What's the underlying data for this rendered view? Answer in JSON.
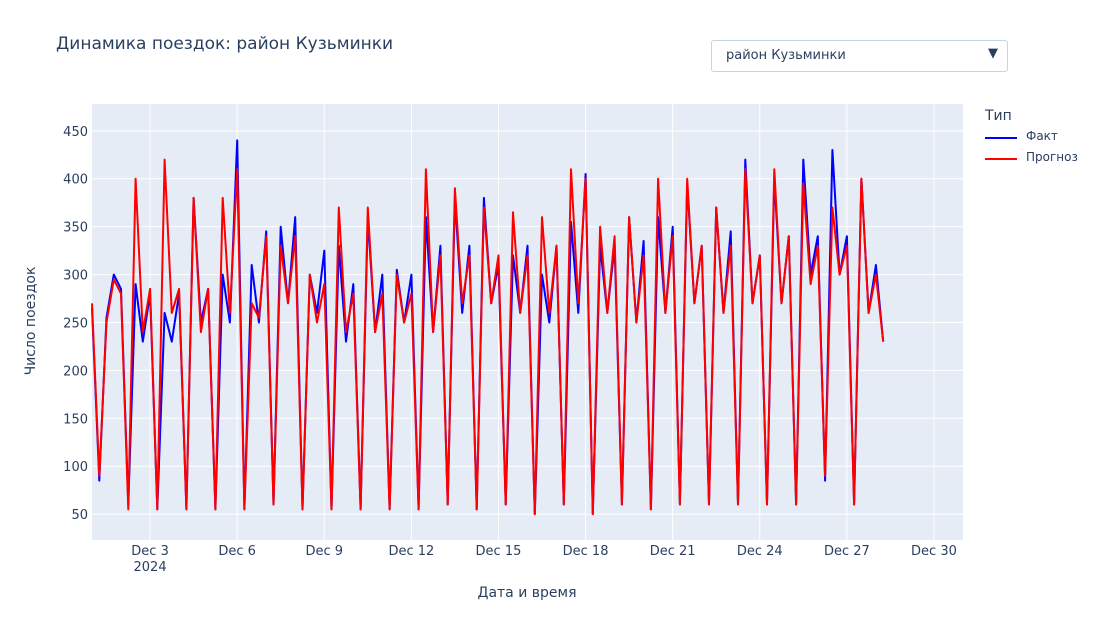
{
  "title": "Динамика поездок: район Кузьминки",
  "dropdown": {
    "selected": "район Кузьминки",
    "arrow_icon": "triangle-down-icon"
  },
  "legend": {
    "title": "Тип"
  },
  "chart_data": {
    "type": "line",
    "xlabel": "Дата и время",
    "ylabel": "Число поездок",
    "x_range": [
      "2024-12-01T00:00",
      "2024-12-31T00:00"
    ],
    "ylim": [
      23,
      478
    ],
    "y_ticks": [
      50,
      100,
      150,
      200,
      250,
      300,
      350,
      400,
      450
    ],
    "x_ticks": [
      {
        "date": "2024-12-03",
        "label": "Dec 3",
        "sublabel": "2024"
      },
      {
        "date": "2024-12-06",
        "label": "Dec 6"
      },
      {
        "date": "2024-12-09",
        "label": "Dec 9"
      },
      {
        "date": "2024-12-12",
        "label": "Dec 12"
      },
      {
        "date": "2024-12-15",
        "label": "Dec 15"
      },
      {
        "date": "2024-12-18",
        "label": "Dec 18"
      },
      {
        "date": "2024-12-21",
        "label": "Dec 21"
      },
      {
        "date": "2024-12-24",
        "label": "Dec 24"
      },
      {
        "date": "2024-12-27",
        "label": "Dec 27"
      },
      {
        "date": "2024-12-30",
        "label": "Dec 30"
      }
    ],
    "grid": true,
    "legend_position": "right",
    "sampling_hours": 6,
    "series": [
      {
        "name": "Факт",
        "color": "#0000ff",
        "values": [
          265,
          85,
          255,
          300,
          285,
          60,
          290,
          230,
          280,
          55,
          260,
          230,
          280,
          55,
          380,
          250,
          285,
          55,
          300,
          250,
          440,
          55,
          310,
          250,
          345,
          60,
          350,
          270,
          360,
          55,
          300,
          260,
          325,
          55,
          330,
          230,
          290,
          55,
          360,
          240,
          300,
          55,
          305,
          250,
          300,
          55,
          360,
          240,
          330,
          60,
          380,
          260,
          330,
          55,
          380,
          270,
          310,
          60,
          320,
          260,
          330,
          50,
          300,
          250,
          330,
          60,
          355,
          260,
          405,
          50,
          330,
          260,
          330,
          60,
          360,
          250,
          335,
          55,
          360,
          260,
          350,
          60,
          395,
          270,
          330,
          60,
          370,
          260,
          345,
          60,
          420,
          270,
          320,
          60,
          400,
          270,
          340,
          60,
          420,
          300,
          340,
          85,
          430,
          300,
          340,
          60,
          400,
          260,
          310,
          230
        ]
      },
      {
        "name": "Прогноз",
        "color": "#ff0000",
        "values": [
          270,
          90,
          250,
          295,
          280,
          55,
          400,
          240,
          285,
          55,
          420,
          260,
          285,
          55,
          380,
          240,
          285,
          55,
          380,
          260,
          410,
          55,
          270,
          255,
          340,
          60,
          330,
          270,
          340,
          55,
          300,
          250,
          290,
          55,
          370,
          240,
          280,
          55,
          370,
          240,
          280,
          55,
          300,
          250,
          280,
          55,
          410,
          240,
          320,
          60,
          390,
          270,
          320,
          55,
          370,
          270,
          320,
          60,
          365,
          260,
          320,
          50,
          360,
          260,
          330,
          60,
          410,
          270,
          400,
          50,
          350,
          260,
          340,
          60,
          360,
          250,
          320,
          55,
          400,
          260,
          340,
          60,
          400,
          270,
          330,
          60,
          370,
          260,
          330,
          60,
          410,
          270,
          320,
          60,
          410,
          270,
          340,
          60,
          395,
          290,
          330,
          90,
          370,
          300,
          330,
          60,
          400,
          260,
          300,
          230
        ]
      }
    ]
  }
}
